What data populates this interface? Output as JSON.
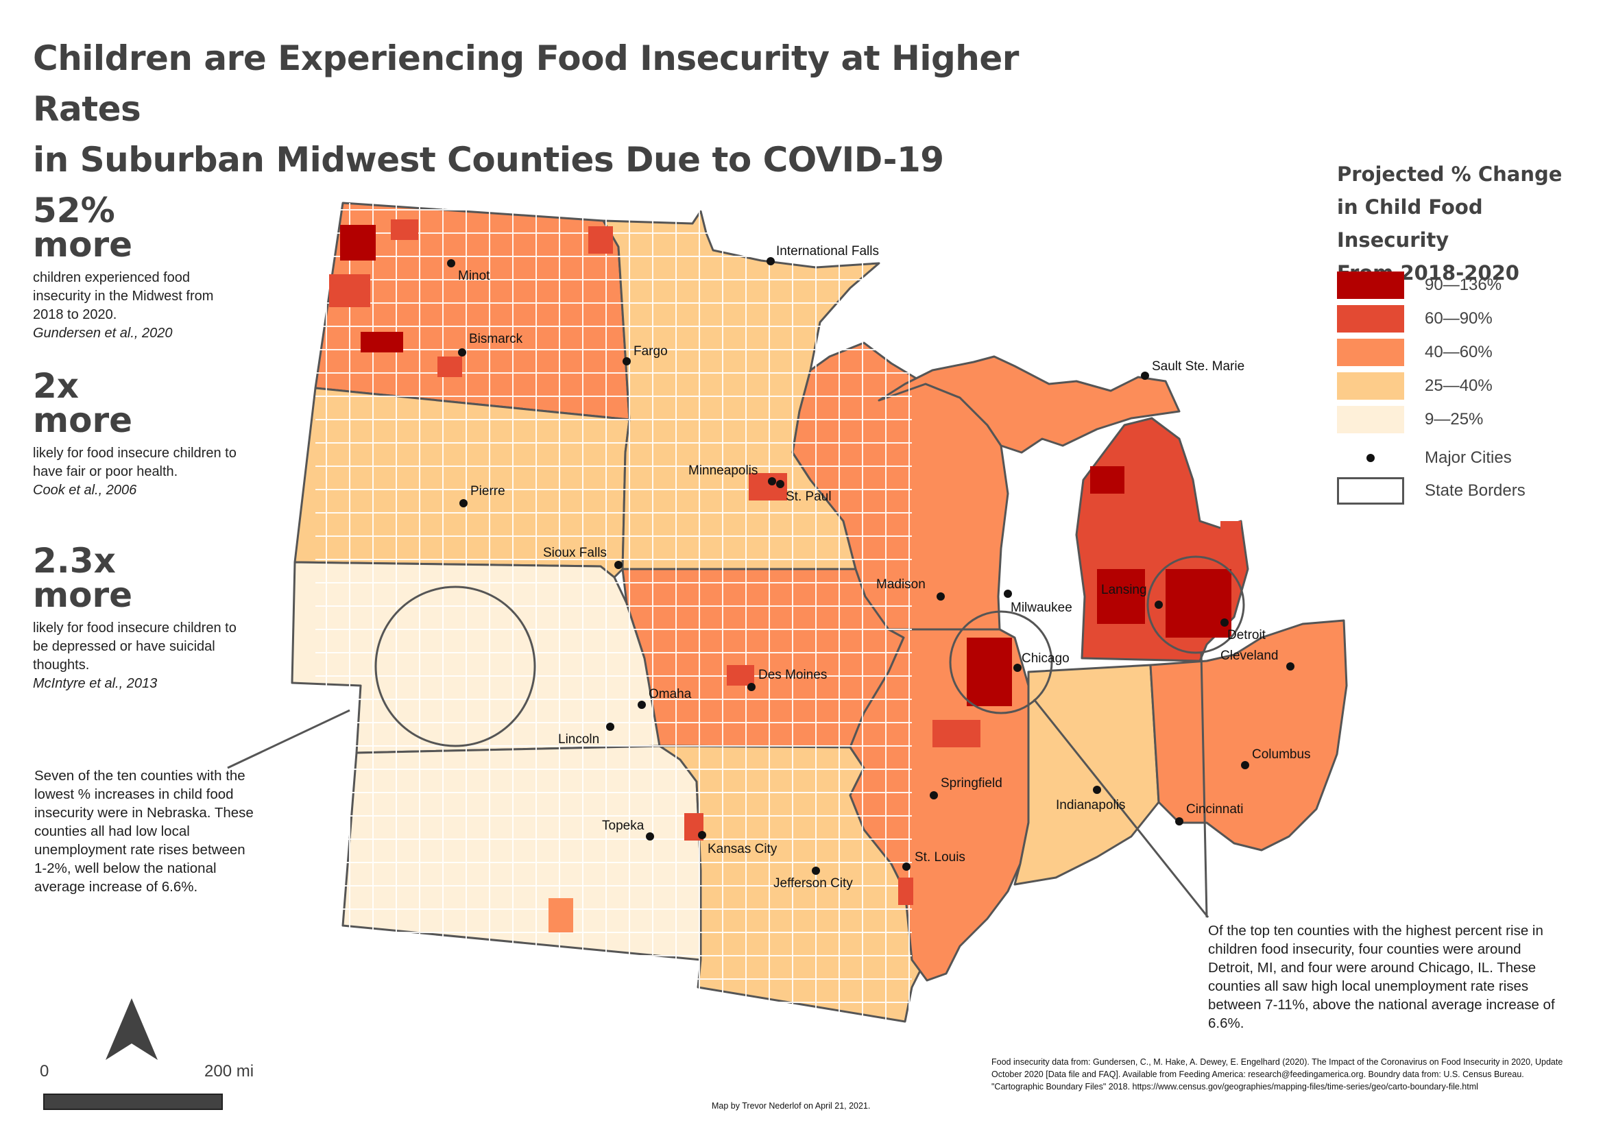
{
  "title": {
    "line1": "Children are Experiencing Food Insecurity at Higher Rates",
    "line2": "in Suburban Midwest Counties Due to COVID-19"
  },
  "stats": [
    {
      "big1": "52%",
      "big2": "more",
      "desc": "children experienced food insecurity in the Midwest from 2018 to 2020.",
      "cite": "Gundersen et al., 2020"
    },
    {
      "big1": "2x",
      "big2": "more",
      "desc": "likely for food insecure children to have fair or poor health.",
      "cite": "Cook et al., 2006"
    },
    {
      "big1": "2.3x",
      "big2": "more",
      "desc": "likely for food insecure children to be depressed or have suicidal thoughts.",
      "cite": "McIntyre et al., 2013"
    }
  ],
  "annotations": {
    "nebraska": "Seven of the ten counties with the lowest % increases in child food insecurity were in Nebraska. These counties all had low local unemployment rate rises between 1-2%, well below the national average increase of 6.6%.",
    "detroit_chicago": "Of the top ten counties with the highest percent rise in children food insecurity, four counties were around Detroit, MI, and four were around Chicago, IL. These counties all saw high local unemployment rate rises between 7-11%, above the national average increase of 6.6%."
  },
  "legend": {
    "title_line1": "Projected % Change",
    "title_line2": "in Child Food Insecurity",
    "title_line3": "From 2018-2020",
    "classes": [
      {
        "label": "90—136%",
        "color": "#b30000"
      },
      {
        "label": "60—90%",
        "color": "#e34a33"
      },
      {
        "label": "40—60%",
        "color": "#fc8d59"
      },
      {
        "label": "25—40%",
        "color": "#fdcc8a"
      },
      {
        "label": "9—25%",
        "color": "#fef0d9"
      }
    ],
    "cities_label": "Major Cities",
    "borders_label": "State Borders"
  },
  "cities": [
    "International Falls",
    "Minot",
    "Bismarck",
    "Fargo",
    "Sault Ste. Marie",
    "Minneapolis",
    "St. Paul",
    "Pierre",
    "Sioux Falls",
    "Madison",
    "Milwaukee",
    "Lansing",
    "Detroit",
    "Chicago",
    "Cleveland",
    "Des Moines",
    "Omaha",
    "Lincoln",
    "Columbus",
    "Springfield",
    "Indianapolis",
    "Topeka",
    "Kansas City",
    "Cincinnati",
    "Jefferson City",
    "St. Louis"
  ],
  "scale": {
    "start": "0",
    "end": "200 mi"
  },
  "credits": {
    "author": "Map by Trevor Nederlof on April 21, 2021.",
    "sources": "Food insecurity data from: Gundersen, C., M. Hake, A. Dewey, E. Engelhard (2020). The Impact of the Coronavirus on Food Insecurity in 2020, Update October 2020 [Data file and FAQ]. Available from Feeding America: research@feedingamerica.org. Boundry data from: U.S. Census Bureau. \"Cartographic Boundary Files\" 2018. https://www.census.gov/geographies/mapping-files/time-series/geo/carto-boundary-file.html"
  }
}
